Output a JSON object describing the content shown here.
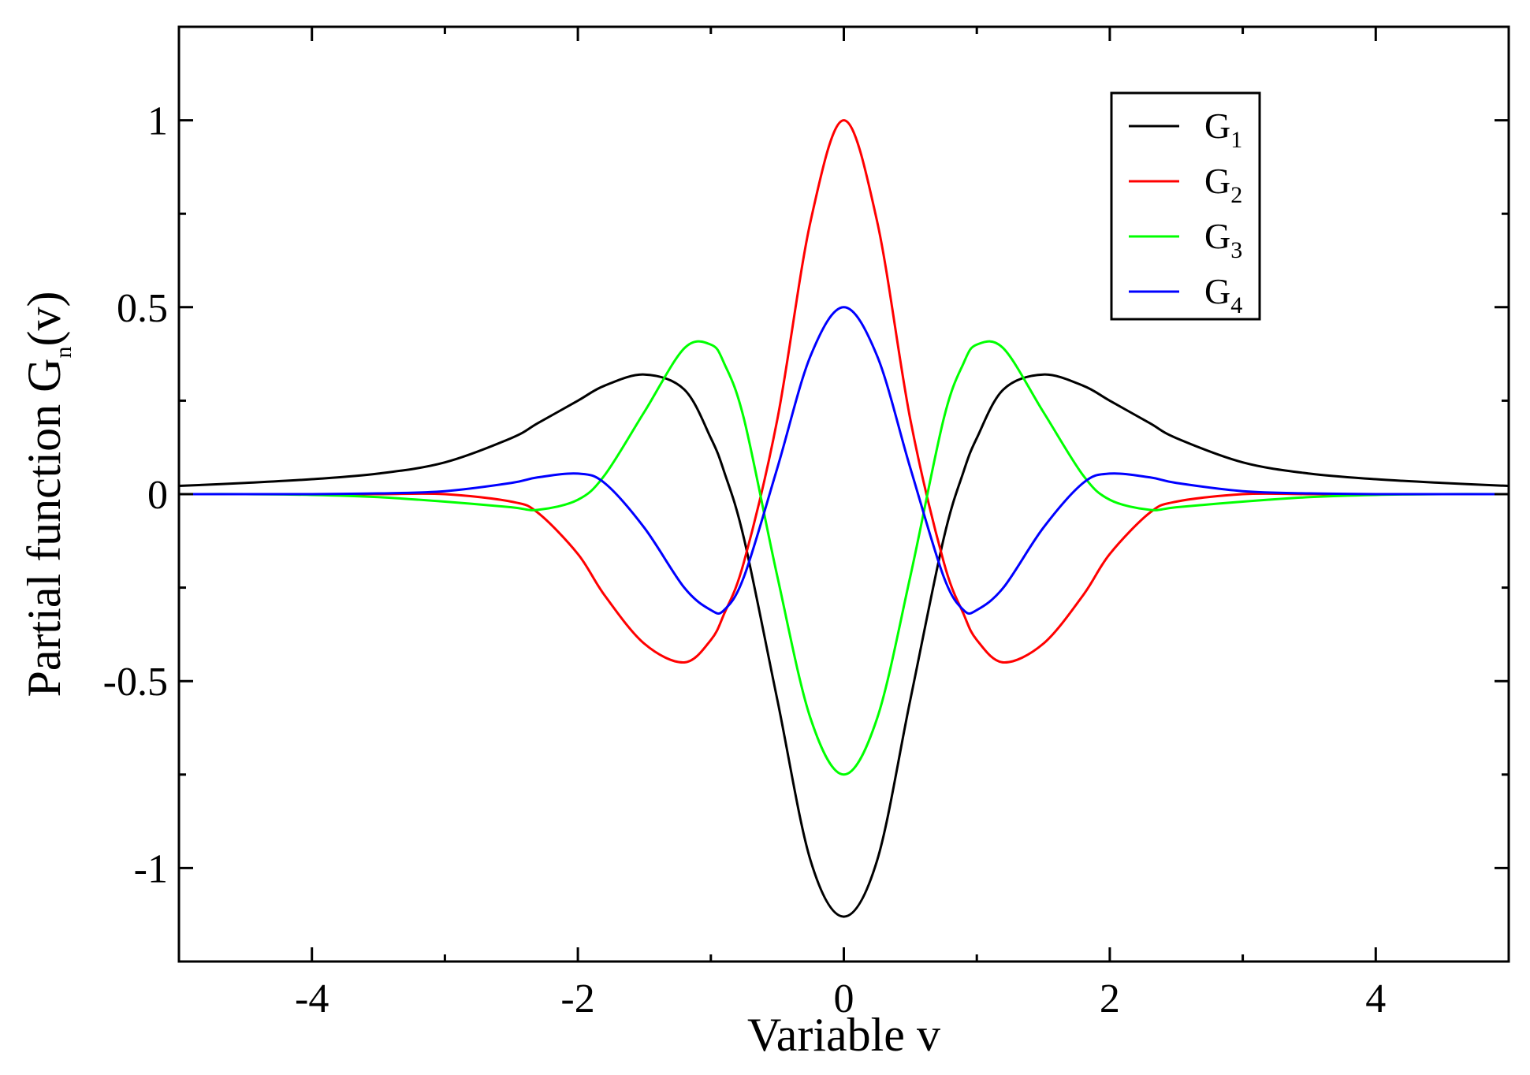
{
  "chart_data": {
    "type": "line",
    "xlabel": "Variable v",
    "ylabel": {
      "prefix": "Partial function G",
      "subscript": "n",
      "suffix": "(v)"
    },
    "xlim": [
      -5,
      5
    ],
    "ylim": [
      -1.25,
      1.25
    ],
    "xticks": [
      {
        "value": -4,
        "label": "-4"
      },
      {
        "value": -2,
        "label": "-2"
      },
      {
        "value": 0,
        "label": "0"
      },
      {
        "value": 2,
        "label": "2"
      },
      {
        "value": 4,
        "label": "4"
      }
    ],
    "xminor": [
      -5,
      -3,
      -1,
      1,
      3,
      5
    ],
    "yticks": [
      {
        "value": -1,
        "label": "-1"
      },
      {
        "value": -0.5,
        "label": "-0.5"
      },
      {
        "value": 0,
        "label": "0"
      },
      {
        "value": 0.5,
        "label": "0.5"
      },
      {
        "value": 1,
        "label": "1"
      }
    ],
    "yminor": [
      -1.25,
      -0.75,
      -0.25,
      0.25,
      0.75,
      1.25
    ],
    "grid": false,
    "legend_position": "top-right",
    "x": [
      -5,
      -4.5,
      -4,
      -3.5,
      -3,
      -2.5,
      -2.3,
      -2,
      -1.8,
      -1.5,
      -1.2,
      -1.0,
      -0.9,
      -0.75,
      -0.5,
      -0.25,
      0,
      0.25,
      0.5,
      0.75,
      0.9,
      1.0,
      1.2,
      1.5,
      1.8,
      2,
      2.3,
      2.5,
      3,
      3.5,
      4,
      4.5,
      5
    ],
    "series": [
      {
        "name": "G",
        "sub": "1",
        "color": "#000000",
        "values": [
          0.022,
          0.03,
          0.04,
          0.055,
          0.085,
          0.15,
          0.19,
          0.25,
          0.29,
          0.32,
          0.28,
          0.15,
          0.06,
          -0.12,
          -0.55,
          -0.98,
          -1.13,
          -0.98,
          -0.55,
          -0.12,
          0.06,
          0.15,
          0.28,
          0.32,
          0.29,
          0.25,
          0.19,
          0.15,
          0.085,
          0.055,
          0.04,
          0.03,
          0.022
        ]
      },
      {
        "name": "G",
        "sub": "2",
        "color": "#ff0000",
        "values": [
          0,
          0,
          0,
          0,
          0,
          -0.02,
          -0.05,
          -0.16,
          -0.27,
          -0.4,
          -0.45,
          -0.39,
          -0.32,
          -0.18,
          0.2,
          0.73,
          1.0,
          0.73,
          0.2,
          -0.18,
          -0.32,
          -0.39,
          -0.45,
          -0.4,
          -0.27,
          -0.16,
          -0.05,
          -0.02,
          0,
          0,
          0,
          0,
          0
        ]
      },
      {
        "name": "G",
        "sub": "3",
        "color": "#00ff00",
        "values": [
          0,
          0,
          -0.002,
          -0.008,
          -0.02,
          -0.035,
          -0.042,
          -0.015,
          0.05,
          0.22,
          0.39,
          0.4,
          0.35,
          0.2,
          -0.22,
          -0.6,
          -0.75,
          -0.6,
          -0.22,
          0.2,
          0.35,
          0.4,
          0.39,
          0.22,
          0.05,
          -0.015,
          -0.042,
          -0.035,
          -0.02,
          -0.008,
          -0.002,
          0,
          0
        ]
      },
      {
        "name": "G",
        "sub": "4",
        "color": "#0000ff",
        "values": [
          0,
          0,
          0,
          0.002,
          0.008,
          0.03,
          0.045,
          0.055,
          0.03,
          -0.09,
          -0.25,
          -0.31,
          -0.31,
          -0.22,
          0.07,
          0.37,
          0.5,
          0.37,
          0.07,
          -0.22,
          -0.31,
          -0.31,
          -0.25,
          -0.09,
          0.03,
          0.055,
          0.045,
          0.03,
          0.008,
          0.002,
          0,
          0,
          0
        ]
      }
    ]
  }
}
